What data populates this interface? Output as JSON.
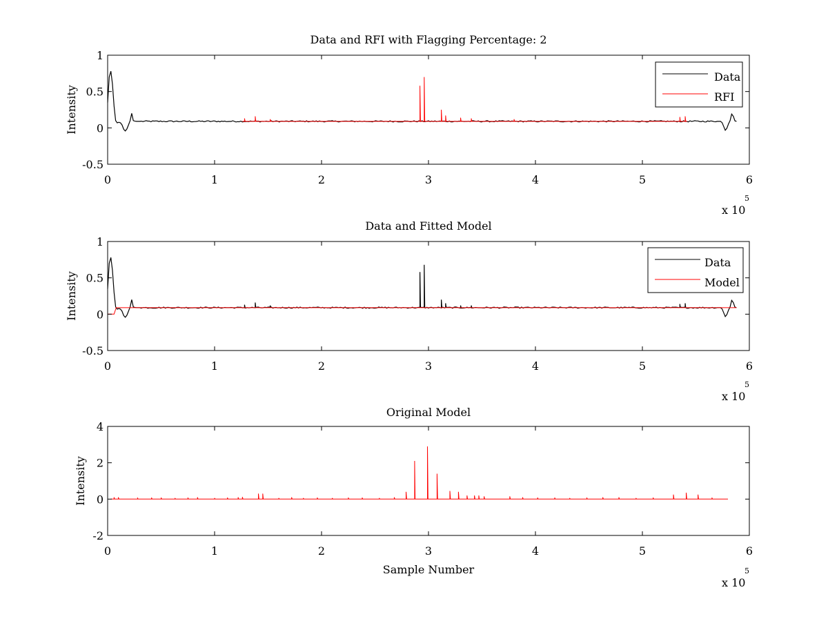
{
  "chart_data": [
    {
      "type": "line",
      "title": "Data and RFI with Flagging Percentage: 2",
      "xlabel": "",
      "ylabel": "Intensity",
      "xlim": [
        0,
        600000
      ],
      "ylim": [
        -0.5,
        1
      ],
      "x_ticks": [
        0,
        1,
        2,
        3,
        4,
        5,
        6
      ],
      "y_ticks": [
        -0.5,
        0,
        0.5,
        1
      ],
      "x_exponent": "x 10",
      "x_exponent_power": "5",
      "grid": false,
      "legend_position": "top-right",
      "series": [
        {
          "name": "Data",
          "color": "#000000",
          "baseline": 0.09,
          "points": [
            [
              0,
              0.35
            ],
            [
              1500,
              0.7
            ],
            [
              3000,
              0.78
            ],
            [
              4500,
              0.6
            ],
            [
              6000,
              0.3
            ],
            [
              7500,
              0.1
            ],
            [
              9000,
              0.07
            ],
            [
              11000,
              0.08
            ],
            [
              13000,
              0.06
            ],
            [
              15000,
              -0.02
            ],
            [
              17000,
              -0.05
            ],
            [
              19000,
              0.02
            ],
            [
              21000,
              0.1
            ],
            [
              22500,
              0.2
            ],
            [
              24000,
              0.1
            ],
            [
              26000,
              0.09
            ],
            [
              574000,
              0.09
            ],
            [
              576000,
              0.02
            ],
            [
              578000,
              -0.05
            ],
            [
              580000,
              0.04
            ],
            [
              582000,
              0.1
            ],
            [
              584000,
              0.22
            ],
            [
              586000,
              0.1
            ],
            [
              588000,
              0.09
            ]
          ]
        },
        {
          "name": "RFI",
          "color": "#ff0000",
          "baseline": 0.09,
          "spikes": [
            [
              128000,
              0.13
            ],
            [
              138000,
              0.16
            ],
            [
              152000,
              0.12
            ],
            [
              292000,
              0.58
            ],
            [
              296000,
              0.7
            ],
            [
              312000,
              0.25
            ],
            [
              316000,
              0.17
            ],
            [
              330000,
              0.14
            ],
            [
              340000,
              0.13
            ],
            [
              380000,
              0.12
            ],
            [
              535000,
              0.15
            ],
            [
              540000,
              0.16
            ]
          ]
        }
      ]
    },
    {
      "type": "line",
      "title": "Data and Fitted Model",
      "xlabel": "",
      "ylabel": "Intensity",
      "xlim": [
        0,
        600000
      ],
      "ylim": [
        -0.5,
        1
      ],
      "x_ticks": [
        0,
        1,
        2,
        3,
        4,
        5,
        6
      ],
      "y_ticks": [
        -0.5,
        0,
        0.5,
        1
      ],
      "x_exponent": "x 10",
      "x_exponent_power": "5",
      "grid": false,
      "legend_position": "top-right",
      "series": [
        {
          "name": "Data",
          "color": "#000000",
          "baseline": 0.09,
          "points": [
            [
              0,
              0.35
            ],
            [
              1500,
              0.7
            ],
            [
              3000,
              0.78
            ],
            [
              4500,
              0.6
            ],
            [
              6000,
              0.3
            ],
            [
              7500,
              0.1
            ],
            [
              9000,
              0.07
            ],
            [
              11000,
              0.08
            ],
            [
              13000,
              0.06
            ],
            [
              15000,
              -0.02
            ],
            [
              17000,
              -0.05
            ],
            [
              19000,
              0.02
            ],
            [
              21000,
              0.1
            ],
            [
              22500,
              0.2
            ],
            [
              24000,
              0.1
            ],
            [
              26000,
              0.09
            ],
            [
              574000,
              0.09
            ],
            [
              576000,
              0.02
            ],
            [
              578000,
              -0.05
            ],
            [
              580000,
              0.04
            ],
            [
              582000,
              0.1
            ],
            [
              584000,
              0.22
            ],
            [
              586000,
              0.1
            ],
            [
              588000,
              0.09
            ]
          ],
          "spikes": [
            [
              128000,
              0.13
            ],
            [
              138000,
              0.16
            ],
            [
              152000,
              0.12
            ],
            [
              292000,
              0.58
            ],
            [
              296000,
              0.68
            ],
            [
              312000,
              0.2
            ],
            [
              316000,
              0.15
            ],
            [
              330000,
              0.12
            ],
            [
              340000,
              0.12
            ],
            [
              535000,
              0.14
            ],
            [
              540000,
              0.15
            ]
          ]
        },
        {
          "name": "Model",
          "color": "#ff0000",
          "points": [
            [
              0,
              0
            ],
            [
              6000,
              0
            ],
            [
              8000,
              0.09
            ],
            [
              588000,
              0.09
            ]
          ]
        }
      ]
    },
    {
      "type": "line",
      "title": "Original Model",
      "xlabel": "Sample Number",
      "ylabel": "Intensity",
      "xlim": [
        0,
        600000
      ],
      "ylim": [
        -2,
        4
      ],
      "x_ticks": [
        0,
        1,
        2,
        3,
        4,
        5,
        6
      ],
      "y_ticks": [
        -2,
        0,
        2,
        4
      ],
      "x_exponent": "x 10",
      "x_exponent_power": "5",
      "grid": false,
      "series": [
        {
          "name": "",
          "color": "#ff0000",
          "baseline": 0,
          "x_range": [
            3000,
            580000
          ],
          "spikes": [
            [
              6000,
              0.1
            ],
            [
              10000,
              0.1
            ],
            [
              28000,
              0.05
            ],
            [
              41000,
              0.08
            ],
            [
              50000,
              0.08
            ],
            [
              63000,
              0.06
            ],
            [
              75000,
              0.08
            ],
            [
              84000,
              0.1
            ],
            [
              100000,
              0.06
            ],
            [
              112000,
              0.08
            ],
            [
              122000,
              0.1
            ],
            [
              126000,
              0.12
            ],
            [
              141000,
              0.3
            ],
            [
              145000,
              0.3
            ],
            [
              160000,
              0.06
            ],
            [
              172000,
              0.1
            ],
            [
              183000,
              0.06
            ],
            [
              196000,
              0.08
            ],
            [
              210000,
              0.06
            ],
            [
              225000,
              0.08
            ],
            [
              238000,
              0.08
            ],
            [
              254000,
              0.06
            ],
            [
              268000,
              0.1
            ],
            [
              279000,
              0.4
            ],
            [
              287000,
              2.1
            ],
            [
              299000,
              2.9
            ],
            [
              308000,
              1.4
            ],
            [
              320000,
              0.45
            ],
            [
              328000,
              0.4
            ],
            [
              336000,
              0.2
            ],
            [
              343000,
              0.2
            ],
            [
              347000,
              0.2
            ],
            [
              352000,
              0.15
            ],
            [
              376000,
              0.15
            ],
            [
              388000,
              0.1
            ],
            [
              402000,
              0.08
            ],
            [
              418000,
              0.08
            ],
            [
              432000,
              0.06
            ],
            [
              448000,
              0.08
            ],
            [
              463000,
              0.1
            ],
            [
              478000,
              0.1
            ],
            [
              494000,
              0.06
            ],
            [
              510000,
              0.08
            ],
            [
              529000,
              0.25
            ],
            [
              541000,
              0.35
            ],
            [
              552000,
              0.25
            ],
            [
              565000,
              0.08
            ]
          ]
        }
      ]
    }
  ]
}
